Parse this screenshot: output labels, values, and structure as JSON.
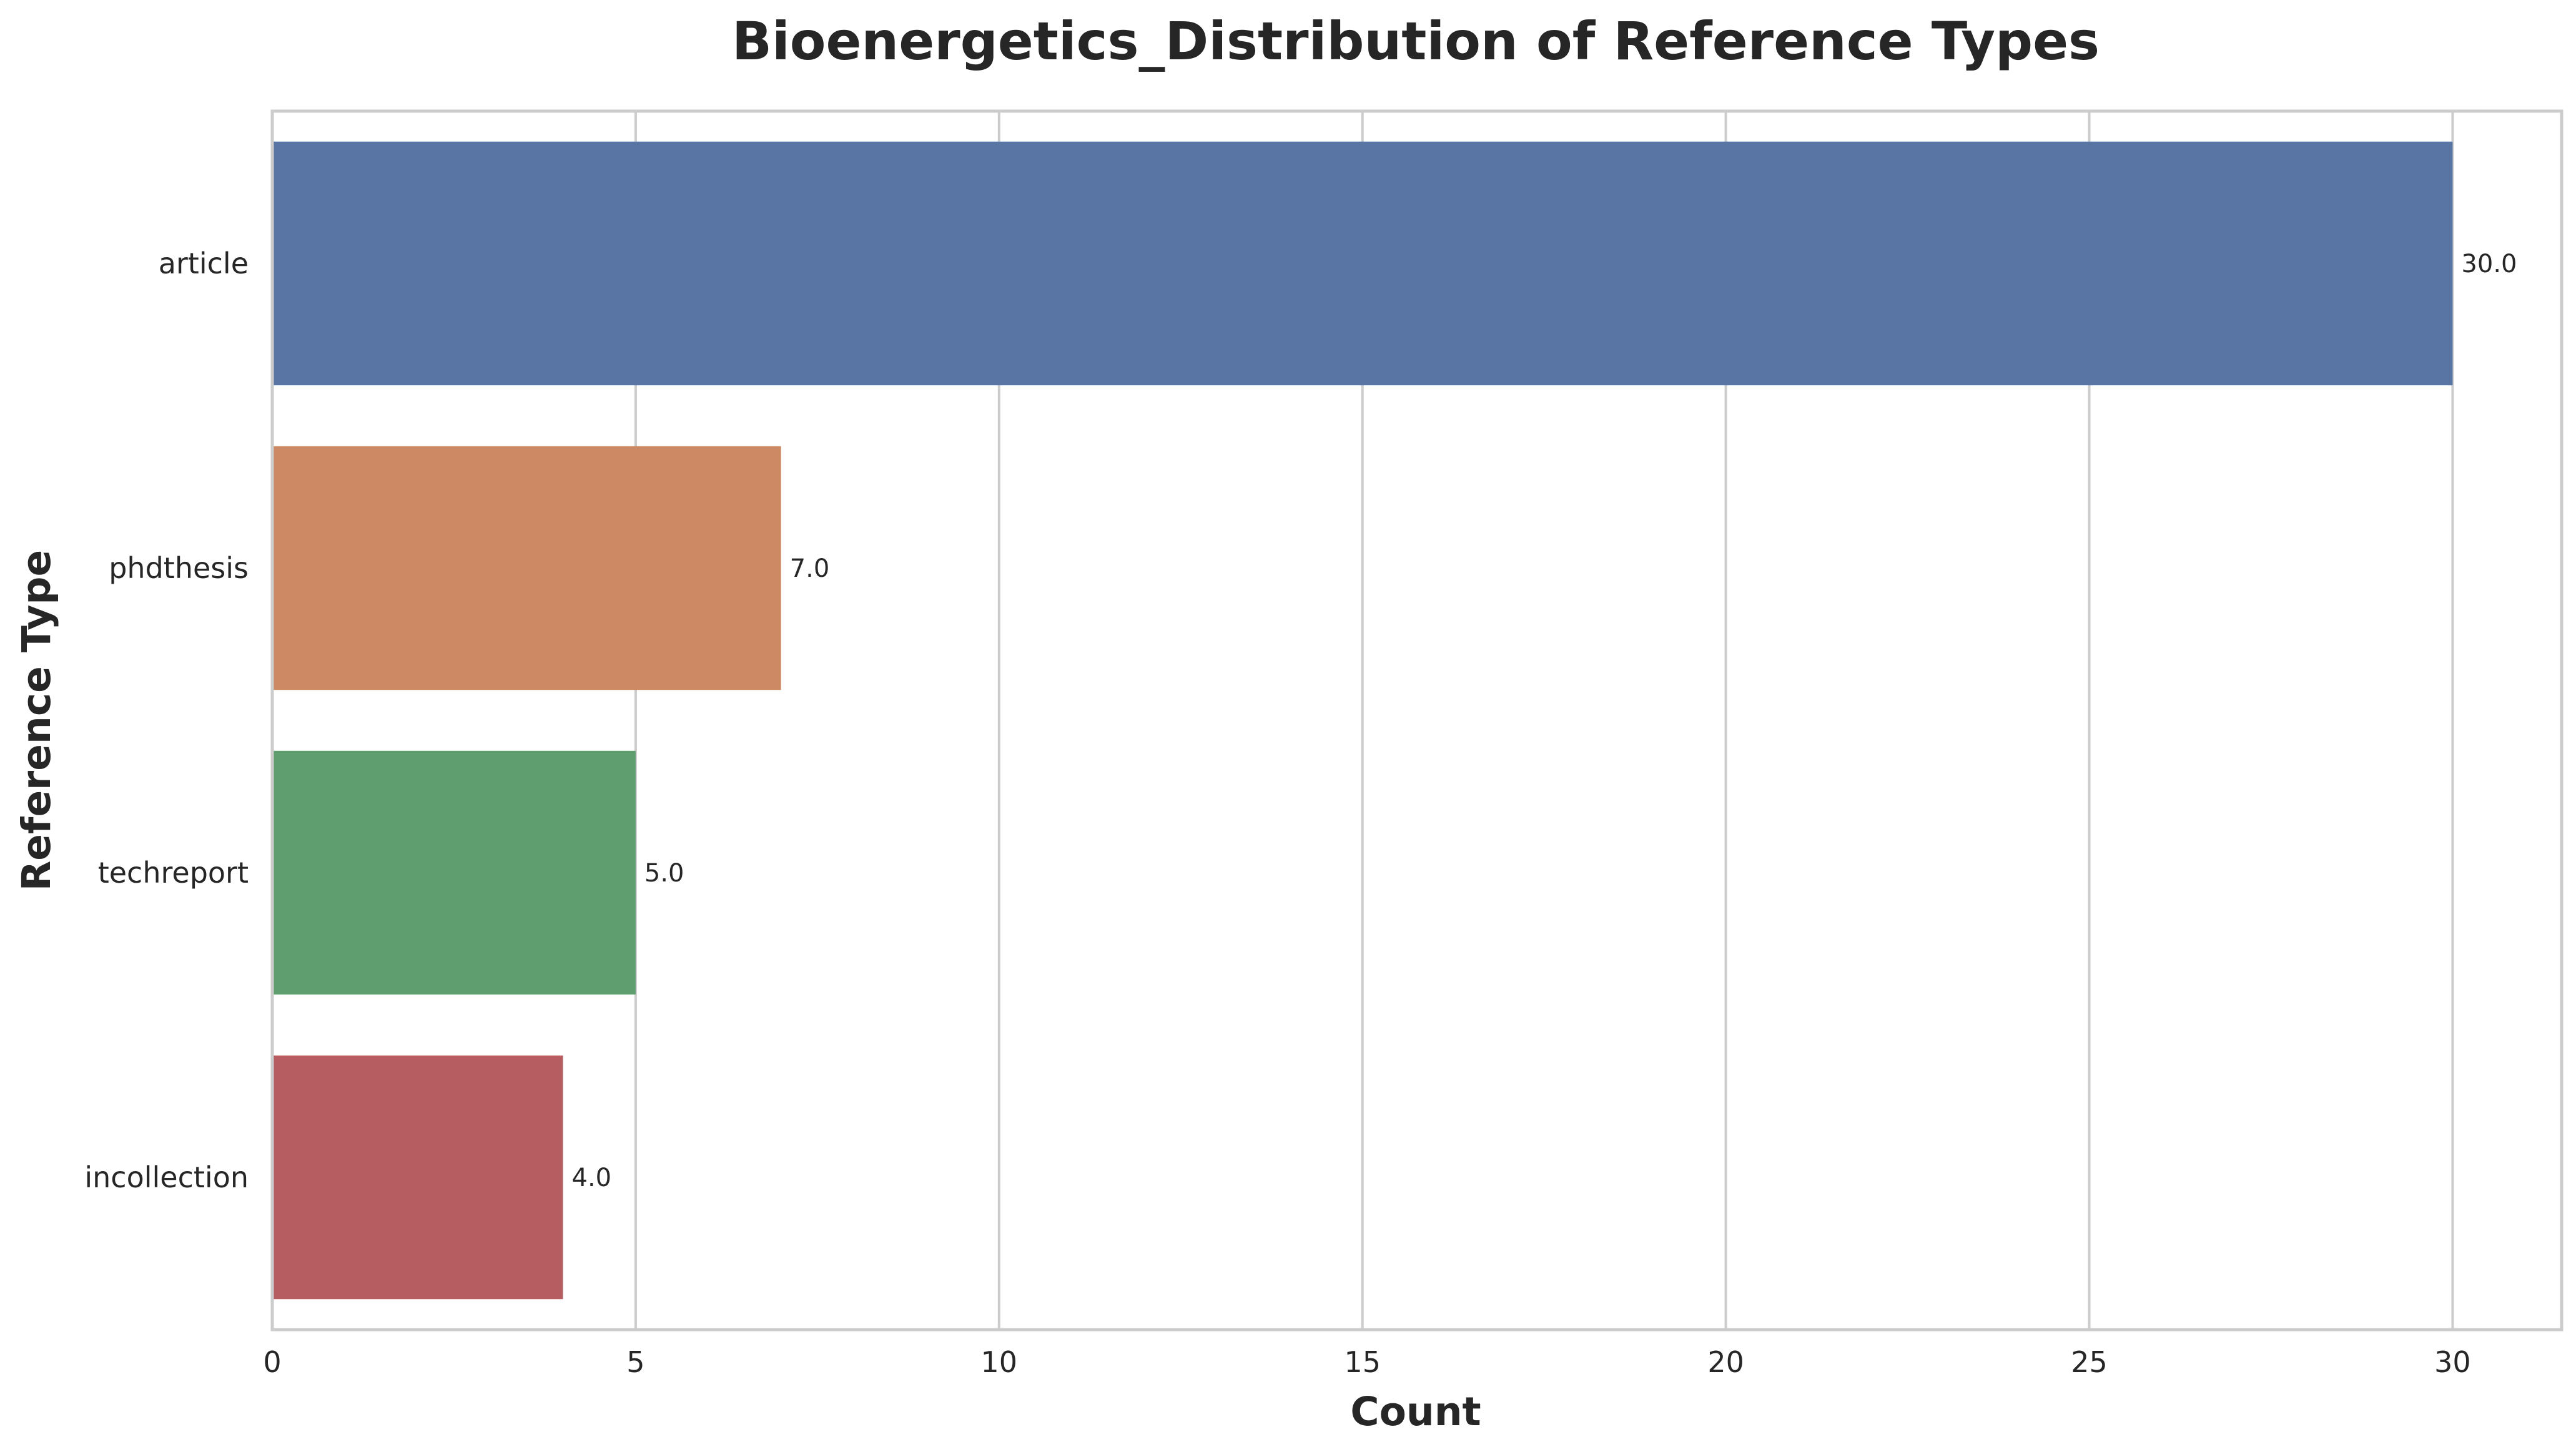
{
  "chart_data": {
    "type": "bar",
    "orientation": "horizontal",
    "title": "Bioenergetics_Distribution of Reference Types",
    "xlabel": "Count",
    "ylabel": "Reference Type",
    "categories": [
      "article",
      "phdthesis",
      "techreport",
      "incollection"
    ],
    "values": [
      30,
      7,
      5,
      4
    ],
    "data_labels": [
      "30.0",
      "7.0",
      "5.0",
      "4.0"
    ],
    "colors": [
      "#5875a4",
      "#cc8963",
      "#5f9e6e",
      "#b55d60"
    ],
    "xlim": [
      0,
      31.5
    ],
    "xticks": [
      0,
      5,
      10,
      15,
      20,
      25,
      30
    ],
    "grid": true,
    "grid_axis": "x"
  }
}
